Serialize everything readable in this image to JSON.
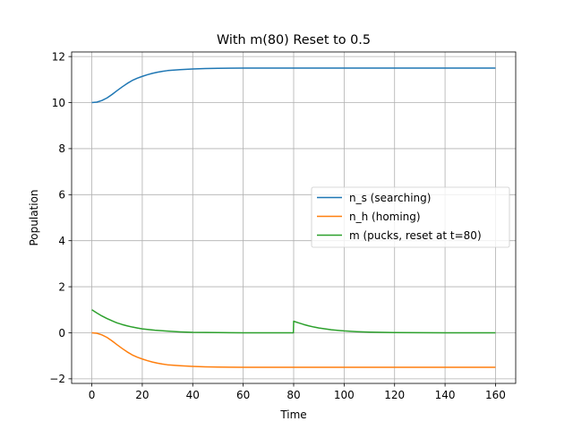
{
  "chart_data": {
    "type": "line",
    "title": "With m(80) Reset to 0.5",
    "xlabel": "Time",
    "ylabel": "Population",
    "xlim": [
      -8,
      168
    ],
    "ylim": [
      -2.2,
      12.2
    ],
    "xticks": [
      0,
      20,
      40,
      60,
      80,
      100,
      120,
      140,
      160
    ],
    "yticks": [
      -2,
      0,
      2,
      4,
      6,
      8,
      10,
      12
    ],
    "xtick_labels": [
      "0",
      "20",
      "40",
      "60",
      "80",
      "100",
      "120",
      "140",
      "160"
    ],
    "ytick_labels": [
      "−2",
      "0",
      "2",
      "4",
      "6",
      "8",
      "10",
      "12"
    ],
    "grid": true,
    "legend_position": "center-right",
    "series": [
      {
        "name": "n_s (searching)",
        "color": "#1f77b4",
        "x": [
          0,
          2,
          4,
          6,
          8,
          10,
          12,
          14,
          16,
          18,
          20,
          22,
          24,
          26,
          28,
          30,
          35,
          40,
          45,
          50,
          60,
          70,
          80,
          90,
          100,
          120,
          140,
          160
        ],
        "y": [
          10.0,
          10.02,
          10.09,
          10.2,
          10.35,
          10.52,
          10.68,
          10.83,
          10.96,
          11.06,
          11.14,
          11.21,
          11.27,
          11.32,
          11.36,
          11.39,
          11.43,
          11.46,
          11.48,
          11.49,
          11.5,
          11.5,
          11.5,
          11.5,
          11.5,
          11.5,
          11.5,
          11.5
        ]
      },
      {
        "name": "n_h (homing)",
        "color": "#ff7f0e",
        "x": [
          0,
          2,
          4,
          6,
          8,
          10,
          12,
          14,
          16,
          18,
          20,
          22,
          24,
          26,
          28,
          30,
          35,
          40,
          45,
          50,
          60,
          70,
          80,
          90,
          100,
          120,
          140,
          160
        ],
        "y": [
          0.0,
          -0.02,
          -0.09,
          -0.2,
          -0.35,
          -0.52,
          -0.68,
          -0.83,
          -0.96,
          -1.06,
          -1.14,
          -1.21,
          -1.27,
          -1.32,
          -1.36,
          -1.39,
          -1.43,
          -1.46,
          -1.48,
          -1.49,
          -1.5,
          -1.5,
          -1.5,
          -1.5,
          -1.5,
          -1.5,
          -1.5,
          -1.5
        ]
      },
      {
        "name": "m (pucks, reset at t=80)",
        "color": "#2ca02c",
        "x": [
          0,
          2,
          4,
          6,
          8,
          10,
          12,
          14,
          16,
          18,
          20,
          25,
          30,
          35,
          40,
          50,
          60,
          70,
          79.9,
          80,
          82,
          84,
          86,
          88,
          90,
          95,
          100,
          105,
          110,
          120,
          140,
          160
        ],
        "y": [
          1.0,
          0.86,
          0.73,
          0.62,
          0.52,
          0.43,
          0.36,
          0.3,
          0.25,
          0.21,
          0.17,
          0.11,
          0.07,
          0.04,
          0.02,
          0.01,
          0.0,
          0.0,
          0.0,
          0.5,
          0.43,
          0.36,
          0.3,
          0.25,
          0.21,
          0.13,
          0.08,
          0.05,
          0.03,
          0.01,
          0.0,
          0.0
        ]
      }
    ]
  }
}
